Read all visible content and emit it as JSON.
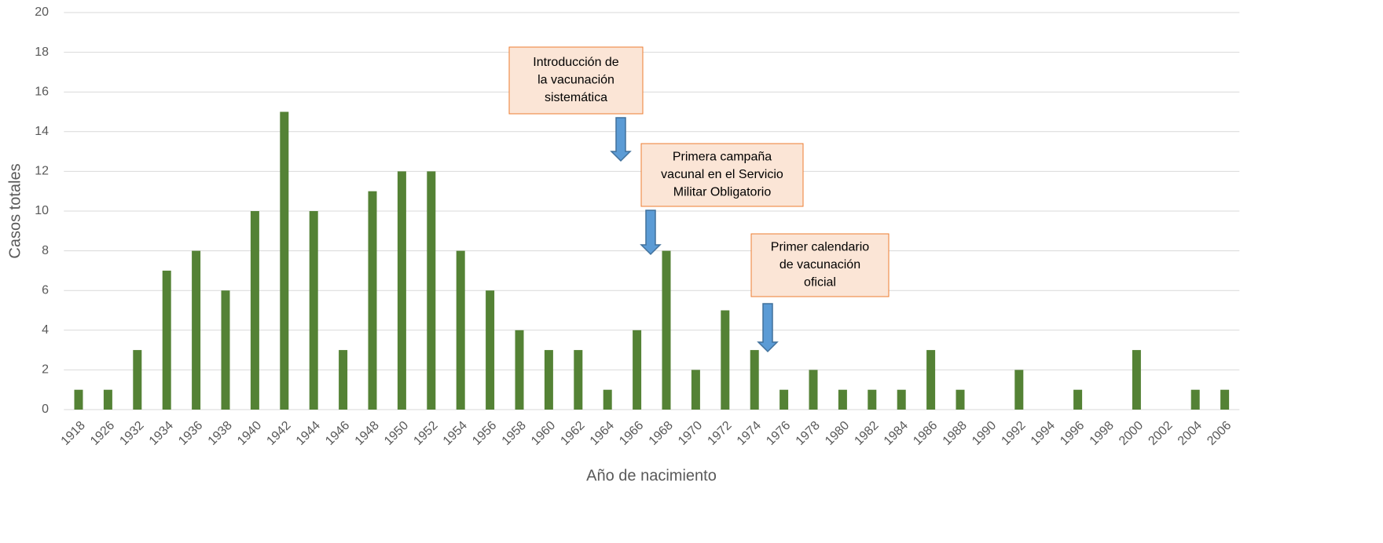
{
  "chart_data": {
    "type": "bar",
    "x_label": "Año de nacimiento",
    "y_label": "Casos totales",
    "categories": [
      "1918",
      "1926",
      "1932",
      "1934",
      "1936",
      "1938",
      "1940",
      "1942",
      "1944",
      "1946",
      "1948",
      "1950",
      "1952",
      "1954",
      "1956",
      "1958",
      "1960",
      "1962",
      "1964",
      "1966",
      "1968",
      "1970",
      "1972",
      "1974",
      "1976",
      "1978",
      "1980",
      "1982",
      "1984",
      "1986",
      "1988",
      "1990",
      "1992",
      "1994",
      "1996",
      "1998",
      "2000",
      "2002",
      "2004",
      "2006"
    ],
    "values": [
      1,
      1,
      3,
      7,
      8,
      6,
      10,
      15,
      10,
      3,
      11,
      12,
      12,
      8,
      6,
      4,
      3,
      3,
      1,
      4,
      8,
      2,
      5,
      3,
      1,
      2,
      1,
      1,
      1,
      3,
      1,
      0,
      2,
      0,
      1,
      0,
      3,
      0,
      1,
      1
    ],
    "color": "#548235",
    "ylim": [
      0,
      20
    ],
    "yticks": [
      0,
      2,
      4,
      6,
      8,
      10,
      12,
      14,
      16,
      18,
      20
    ],
    "grid": true,
    "annotations": [
      {
        "text": [
          "Introducción de",
          "la vacunación",
          "sistemática"
        ]
      },
      {
        "text": [
          "Primera campaña",
          "vacunal en el Servicio",
          "Militar Obligatorio"
        ]
      },
      {
        "text": [
          "Primer calendario",
          "de vacunación",
          "oficial"
        ]
      }
    ]
  }
}
